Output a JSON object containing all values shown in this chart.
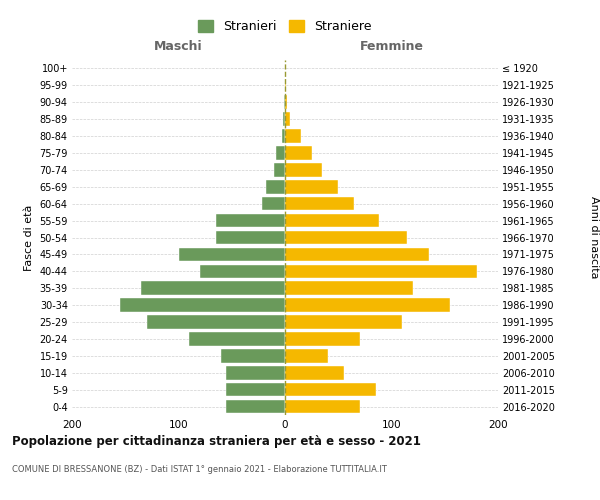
{
  "age_groups_bottom_to_top": [
    "0-4",
    "5-9",
    "10-14",
    "15-19",
    "20-24",
    "25-29",
    "30-34",
    "35-39",
    "40-44",
    "45-49",
    "50-54",
    "55-59",
    "60-64",
    "65-69",
    "70-74",
    "75-79",
    "80-84",
    "85-89",
    "90-94",
    "95-99",
    "100+"
  ],
  "birth_years_bottom_to_top": [
    "2016-2020",
    "2011-2015",
    "2006-2010",
    "2001-2005",
    "1996-2000",
    "1991-1995",
    "1986-1990",
    "1981-1985",
    "1976-1980",
    "1971-1975",
    "1966-1970",
    "1961-1965",
    "1956-1960",
    "1951-1955",
    "1946-1950",
    "1941-1945",
    "1936-1940",
    "1931-1935",
    "1926-1930",
    "1921-1925",
    "≤ 1920"
  ],
  "maschi_bottom_to_top": [
    55,
    55,
    55,
    60,
    90,
    130,
    155,
    135,
    80,
    100,
    65,
    65,
    22,
    18,
    10,
    8,
    3,
    2,
    1,
    0,
    0
  ],
  "femmine_bottom_to_top": [
    70,
    85,
    55,
    40,
    70,
    110,
    155,
    120,
    180,
    135,
    115,
    88,
    65,
    50,
    35,
    25,
    15,
    5,
    2,
    1,
    0
  ],
  "color_maschi": "#6a9a5b",
  "color_femmine": "#f5b800",
  "title": "Popolazione per cittadinanza straniera per età e sesso - 2021",
  "subtitle": "COMUNE DI BRESSANONE (BZ) - Dati ISTAT 1° gennaio 2021 - Elaborazione TUTTITALIA.IT",
  "header_left": "Maschi",
  "header_right": "Femmine",
  "ylabel_left": "Fasce di età",
  "ylabel_right": "Anni di nascita",
  "legend_maschi": "Stranieri",
  "legend_femmine": "Straniere",
  "xlim": 200,
  "bg_color": "#ffffff",
  "grid_color": "#d0d0d0",
  "dashed_line_color": "#999933"
}
